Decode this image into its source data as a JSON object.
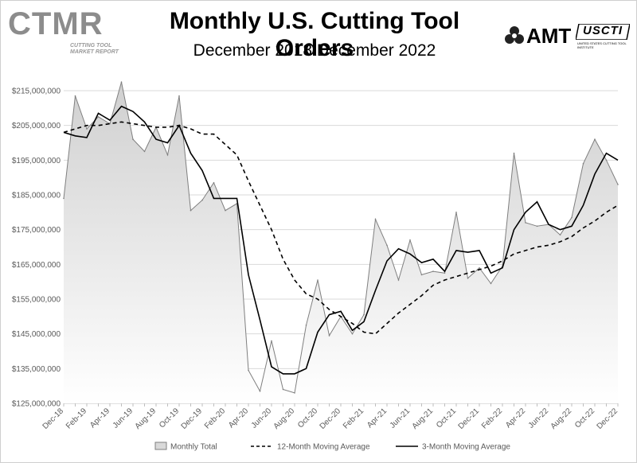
{
  "header": {
    "title": "Monthly U.S. Cutting Tool Orders",
    "subtitle": "December 2018 December 2022"
  },
  "logos": {
    "left_word": "CTMR",
    "left_sub": "CUTTING TOOL MARKET REPORT",
    "amt": "AMT",
    "usct": "USCTI",
    "usct_sub": "UNITED STATES CUTTING TOOL INSTITUTE"
  },
  "colors": {
    "area_fill_top": "#d9d9d9",
    "area_fill_bottom": "#ffffff",
    "area_stroke": "#808080",
    "line": "#000000",
    "grid": "#d9d9d9"
  },
  "chart_data": {
    "type": "area",
    "title": "Monthly U.S. Cutting Tool Orders",
    "subtitle": "December 2018 December 2022",
    "ylim": [
      125000000,
      215000000
    ],
    "yticks": [
      125000000,
      135000000,
      145000000,
      155000000,
      165000000,
      175000000,
      185000000,
      195000000,
      205000000,
      215000000
    ],
    "ytick_labels": [
      "$125,000,000",
      "$135,000,000",
      "$145,000,000",
      "$155,000,000",
      "$165,000,000",
      "$175,000,000",
      "$185,000,000",
      "$195,000,000",
      "$205,000,000",
      "$215,000,000"
    ],
    "x": [
      "Dec-18",
      "Jan-19",
      "Feb-19",
      "Mar-19",
      "Apr-19",
      "May-19",
      "Jun-19",
      "Jul-19",
      "Aug-19",
      "Sep-19",
      "Oct-19",
      "Nov-19",
      "Dec-19",
      "Jan-20",
      "Feb-20",
      "Mar-20",
      "Apr-20",
      "May-20",
      "Jun-20",
      "Jul-20",
      "Aug-20",
      "Sep-20",
      "Oct-20",
      "Nov-20",
      "Dec-20",
      "Jan-21",
      "Feb-21",
      "Mar-21",
      "Apr-21",
      "May-21",
      "Jun-21",
      "Jul-21",
      "Aug-21",
      "Sep-21",
      "Oct-21",
      "Nov-21",
      "Dec-21",
      "Jan-22",
      "Feb-22",
      "Mar-22",
      "Apr-22",
      "May-22",
      "Jun-22",
      "Jul-22",
      "Aug-22",
      "Sep-22",
      "Oct-22",
      "Nov-22",
      "Dec-22"
    ],
    "xtick_labels": [
      "Dec-18",
      "Feb-19",
      "Apr-19",
      "Jun-19",
      "Aug-19",
      "Oct-19",
      "Dec-19",
      "Feb-20",
      "Apr-20",
      "Jun-20",
      "Aug-20",
      "Oct-20",
      "Dec-20",
      "Feb-21",
      "Apr-21",
      "Jun-21",
      "Aug-21",
      "Oct-21",
      "Dec-21",
      "Feb-22",
      "Apr-22",
      "Jun-22",
      "Aug-22",
      "Oct-22",
      "Dec-22"
    ],
    "legend_position": "bottom",
    "grid": true,
    "series": [
      {
        "name": "Monthly Total",
        "style": "area",
        "values": [
          184000000,
          213500000,
          204000000,
          207500000,
          205500000,
          217500000,
          201000000,
          197500000,
          204500000,
          196500000,
          213500000,
          180500000,
          183500000,
          188500000,
          180500000,
          182500000,
          134500000,
          128500000,
          143000000,
          129000000,
          128000000,
          147500000,
          160500000,
          144500000,
          150000000,
          145000000,
          150500000,
          178000000,
          170500000,
          160500000,
          172000000,
          162000000,
          163000000,
          162500000,
          180000000,
          161000000,
          164000000,
          159500000,
          164500000,
          197000000,
          177000000,
          176000000,
          176500000,
          173500000,
          178500000,
          194000000,
          201000000,
          195000000,
          188000000
        ]
      },
      {
        "name": "12-Month Moving Average",
        "style": "dashed",
        "values": [
          203000000,
          204000000,
          205000000,
          205000000,
          205500000,
          206000000,
          205500000,
          205000000,
          204500000,
          204500000,
          205000000,
          204000000,
          202500000,
          202500000,
          199500000,
          196500000,
          189000000,
          182000000,
          175000000,
          166500000,
          160500000,
          156500000,
          155000000,
          152000000,
          150000000,
          148000000,
          145500000,
          145000000,
          148000000,
          151000000,
          153500000,
          156000000,
          159000000,
          160500000,
          161500000,
          162500000,
          163500000,
          164500000,
          166000000,
          168000000,
          169000000,
          170000000,
          170500000,
          171500000,
          173000000,
          175500000,
          177500000,
          180000000,
          182000000
        ]
      },
      {
        "name": "3-Month Moving Average",
        "style": "solid",
        "values": [
          203000000,
          202000000,
          201500000,
          208500000,
          206500000,
          210500000,
          209000000,
          206000000,
          201000000,
          200000000,
          205000000,
          197000000,
          192000000,
          184000000,
          184000000,
          184000000,
          162000000,
          149000000,
          135500000,
          133500000,
          133500000,
          135000000,
          145500000,
          150500000,
          151500000,
          146000000,
          148500000,
          157500000,
          166000000,
          169500000,
          168000000,
          165500000,
          166500000,
          163000000,
          169000000,
          168500000,
          169000000,
          162500000,
          164000000,
          175000000,
          180000000,
          183000000,
          176500000,
          175000000,
          176000000,
          182000000,
          191000000,
          197000000,
          195000000
        ]
      }
    ]
  }
}
